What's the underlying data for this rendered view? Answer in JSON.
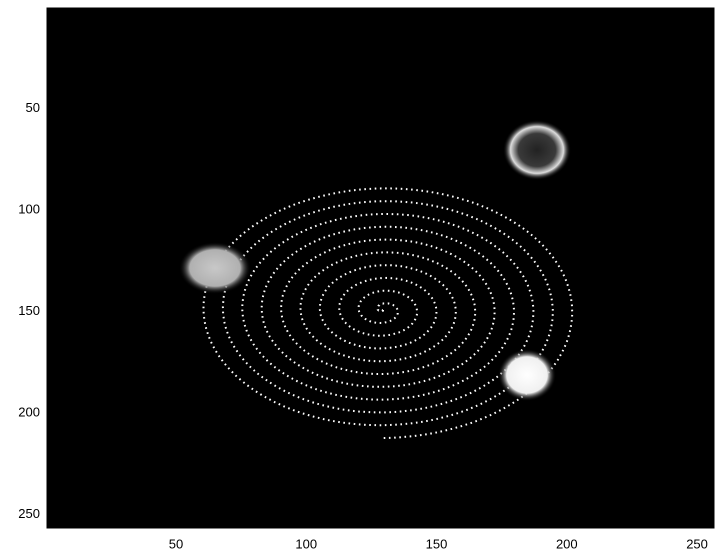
{
  "chart_data": {
    "type": "image",
    "xlim": [
      0.5,
      256.5
    ],
    "ylim": [
      256.5,
      0.5
    ],
    "xticks": [
      50,
      100,
      150,
      200,
      250
    ],
    "yticks": [
      50,
      100,
      150,
      200,
      250
    ]
  }
}
